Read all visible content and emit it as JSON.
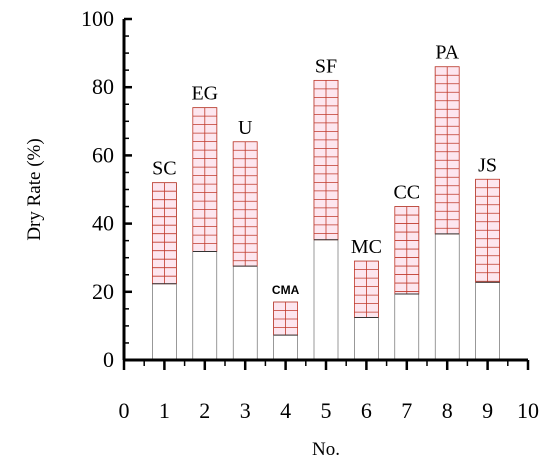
{
  "chart_data": {
    "type": "bar",
    "x": [
      1,
      2,
      3,
      4,
      5,
      6,
      7,
      8,
      9
    ],
    "categories": [
      "SC",
      "EG",
      "U",
      "CMA",
      "SF",
      "MC",
      "CC",
      "PA",
      "JS"
    ],
    "values": [
      52,
      74,
      64,
      17,
      82,
      29,
      45,
      86,
      53
    ],
    "xlabel": "No.",
    "ylabel": "Dry Rate (%)",
    "xlim": [
      0,
      10
    ],
    "ylim": [
      0,
      100
    ],
    "xticks": [
      "0",
      "1",
      "2",
      "3",
      "4",
      "5",
      "6",
      "7",
      "8",
      "9",
      "10"
    ],
    "yticks": [
      "0",
      "20",
      "40",
      "60",
      "80",
      "100"
    ],
    "grid": false,
    "bar_fill_color": "#fde6ef",
    "bar_hatch_color": "#c0392b",
    "axis_color": "#000000"
  }
}
